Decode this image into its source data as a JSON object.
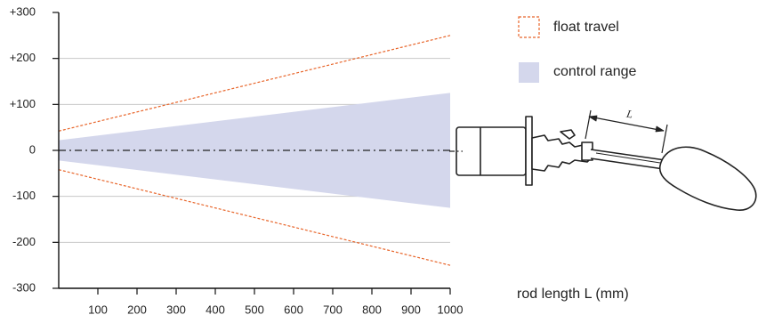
{
  "chart_data": {
    "type": "area",
    "title": "",
    "xlabel": "rod length L (mm)",
    "ylabel": "",
    "xlim": [
      0,
      1000
    ],
    "ylim": [
      -300,
      300
    ],
    "x_ticks": [
      "100",
      "200",
      "300",
      "400",
      "500",
      "600",
      "700",
      "800",
      "900",
      "1000"
    ],
    "y_ticks": [
      "+300",
      "+200",
      "+100",
      "0",
      "-100",
      "-200",
      "-300"
    ],
    "grid": true,
    "legend_position": "top-right",
    "series": [
      {
        "name": "float travel",
        "style": "dashed-orange",
        "x": [
          0,
          1000
        ],
        "upper": [
          42,
          250
        ],
        "lower": [
          -42,
          -250
        ]
      },
      {
        "name": "control range",
        "style": "filled-band",
        "x": [
          0,
          1000
        ],
        "upper": [
          22,
          125
        ],
        "lower": [
          -22,
          -125
        ]
      }
    ],
    "diagram_label": "L"
  },
  "colors": {
    "float_travel": "#e8652a",
    "control_range": "#d4d7ec",
    "axis": "#111111",
    "grid": "#c8c8c8",
    "centerline": "#222222"
  }
}
